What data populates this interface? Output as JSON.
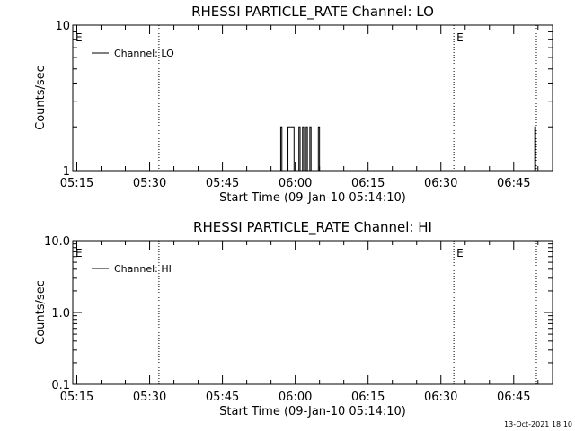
{
  "footer_timestamp": "13-Oct-2021 18:10",
  "colors": {
    "background": "#ffffff",
    "foreground": "#000000"
  },
  "chart_data": [
    {
      "type": "line",
      "title": "RHESSI PARTICLE_RATE Channel: LO",
      "xlabel": "Start Time (09-Jan-10 05:14:10)",
      "ylabel": "Counts/sec",
      "y_scale": "log",
      "ylim": [
        1,
        10
      ],
      "y_ticks": [
        {
          "value": 1,
          "label": "1"
        },
        {
          "value": 10,
          "label": "10"
        }
      ],
      "xlim": [
        "05:14:10",
        "06:53:00"
      ],
      "x_ticks": [
        "05:15",
        "05:30",
        "05:45",
        "06:00",
        "06:15",
        "06:30",
        "06:45"
      ],
      "legend": {
        "placement": "top-left",
        "entries": [
          "Channel: LO"
        ]
      },
      "markers": [
        {
          "time": "05:14:10",
          "label": "E",
          "dotted_line": false
        },
        {
          "time": "05:31:55",
          "label": "",
          "dotted_line": true
        },
        {
          "time": "06:32:40",
          "label": "E",
          "dotted_line": true
        },
        {
          "time": "06:49:40",
          "label": "",
          "dotted_line": true
        }
      ],
      "series": [
        {
          "name": "Channel: LO",
          "points": [
            [
              "05:14:10",
              1
            ],
            [
              "05:57:00",
              1
            ],
            [
              "05:57:00",
              2
            ],
            [
              "05:57:15",
              2
            ],
            [
              "05:57:15",
              1
            ],
            [
              "05:58:30",
              1
            ],
            [
              "05:58:30",
              2
            ],
            [
              "05:59:45",
              2
            ],
            [
              "05:59:45",
              1
            ],
            [
              "06:00:45",
              1
            ],
            [
              "06:00:45",
              2
            ],
            [
              "06:01:00",
              2
            ],
            [
              "06:01:00",
              1
            ],
            [
              "06:01:30",
              1
            ],
            [
              "06:01:30",
              2
            ],
            [
              "06:01:45",
              2
            ],
            [
              "06:01:45",
              1
            ],
            [
              "06:02:15",
              1
            ],
            [
              "06:02:15",
              2
            ],
            [
              "06:02:30",
              2
            ],
            [
              "06:02:30",
              1
            ],
            [
              "06:03:00",
              1
            ],
            [
              "06:03:00",
              2
            ],
            [
              "06:03:15",
              2
            ],
            [
              "06:03:15",
              1
            ],
            [
              "06:04:45",
              1
            ],
            [
              "06:04:45",
              2
            ],
            [
              "06:05:00",
              2
            ],
            [
              "06:05:00",
              1
            ],
            [
              "06:49:20",
              1
            ],
            [
              "06:49:20",
              2
            ],
            [
              "06:49:30",
              2
            ],
            [
              "06:49:30",
              1
            ],
            [
              "06:53:00",
              1
            ]
          ]
        }
      ]
    },
    {
      "type": "line",
      "title": "RHESSI PARTICLE_RATE Channel: HI",
      "xlabel": "Start Time (09-Jan-10 05:14:10)",
      "ylabel": "Counts/sec",
      "y_scale": "log",
      "ylim": [
        0.1,
        10
      ],
      "y_ticks": [
        {
          "value": 0.1,
          "label": "0.1"
        },
        {
          "value": 1,
          "label": "1.0"
        },
        {
          "value": 10,
          "label": "10.0"
        }
      ],
      "xlim": [
        "05:14:10",
        "06:53:00"
      ],
      "x_ticks": [
        "05:15",
        "05:30",
        "05:45",
        "06:00",
        "06:15",
        "06:30",
        "06:45"
      ],
      "legend": {
        "placement": "top-left",
        "entries": [
          "Channel: HI"
        ]
      },
      "markers": [
        {
          "time": "05:14:10",
          "label": "E",
          "dotted_line": false
        },
        {
          "time": "05:31:55",
          "label": "",
          "dotted_line": true
        },
        {
          "time": "06:32:40",
          "label": "E",
          "dotted_line": true
        },
        {
          "time": "06:49:40",
          "label": "",
          "dotted_line": true
        }
      ],
      "series": [
        {
          "name": "Channel: HI",
          "points": []
        }
      ]
    }
  ]
}
